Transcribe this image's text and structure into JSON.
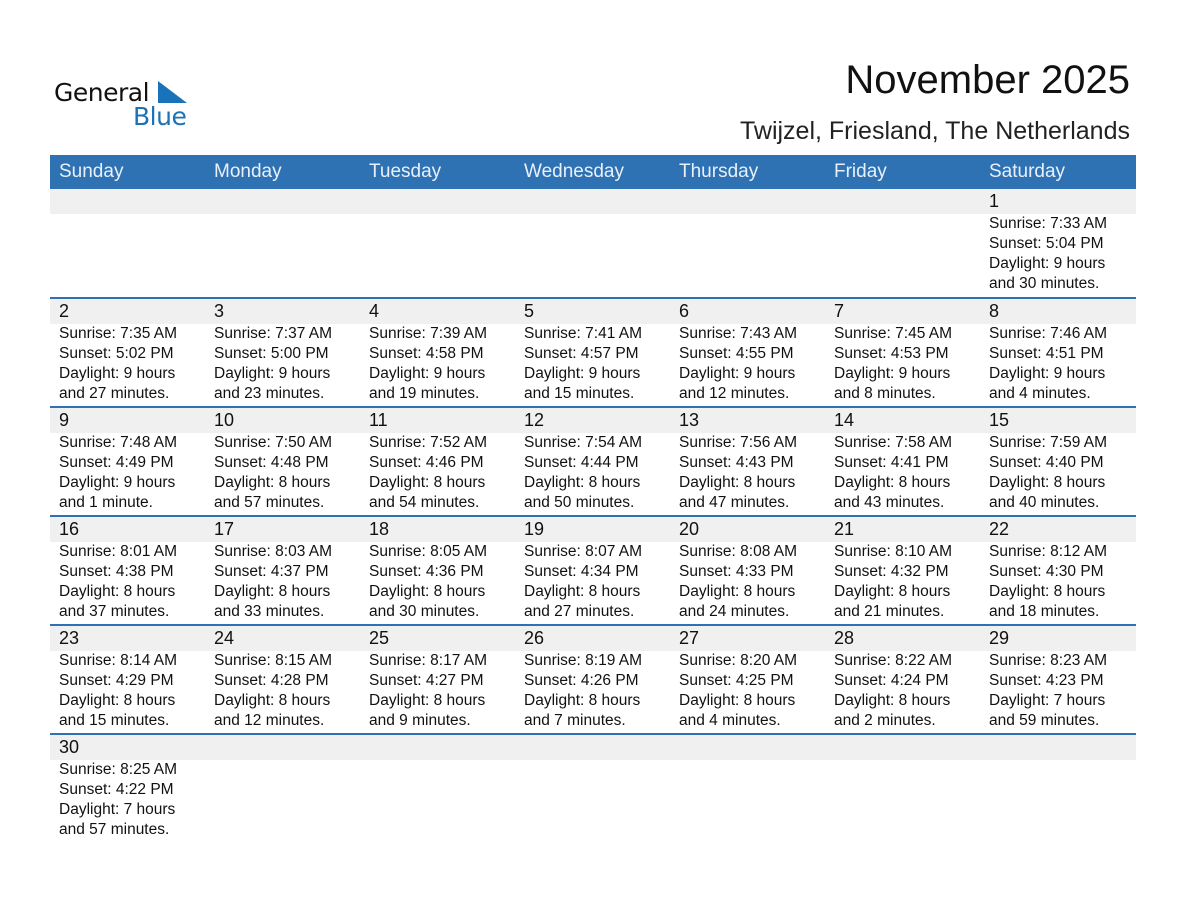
{
  "logo": {
    "word1": "General",
    "word2": "Blue",
    "accent": "#1a73b8"
  },
  "title": "November 2025",
  "location": "Twijzel, Friesland, The Netherlands",
  "colors": {
    "header": "#2e72b3",
    "band": "#f0f0f0"
  },
  "weekdays": [
    "Sunday",
    "Monday",
    "Tuesday",
    "Wednesday",
    "Thursday",
    "Friday",
    "Saturday"
  ],
  "weeks": [
    [
      null,
      null,
      null,
      null,
      null,
      null,
      {
        "day": "1",
        "sunrise": "Sunrise: 7:33 AM",
        "sunset": "Sunset: 5:04 PM",
        "daylight1": "Daylight: 9 hours",
        "daylight2": "and 30 minutes."
      }
    ],
    [
      {
        "day": "2",
        "sunrise": "Sunrise: 7:35 AM",
        "sunset": "Sunset: 5:02 PM",
        "daylight1": "Daylight: 9 hours",
        "daylight2": "and 27 minutes."
      },
      {
        "day": "3",
        "sunrise": "Sunrise: 7:37 AM",
        "sunset": "Sunset: 5:00 PM",
        "daylight1": "Daylight: 9 hours",
        "daylight2": "and 23 minutes."
      },
      {
        "day": "4",
        "sunrise": "Sunrise: 7:39 AM",
        "sunset": "Sunset: 4:58 PM",
        "daylight1": "Daylight: 9 hours",
        "daylight2": "and 19 minutes."
      },
      {
        "day": "5",
        "sunrise": "Sunrise: 7:41 AM",
        "sunset": "Sunset: 4:57 PM",
        "daylight1": "Daylight: 9 hours",
        "daylight2": "and 15 minutes."
      },
      {
        "day": "6",
        "sunrise": "Sunrise: 7:43 AM",
        "sunset": "Sunset: 4:55 PM",
        "daylight1": "Daylight: 9 hours",
        "daylight2": "and 12 minutes."
      },
      {
        "day": "7",
        "sunrise": "Sunrise: 7:45 AM",
        "sunset": "Sunset: 4:53 PM",
        "daylight1": "Daylight: 9 hours",
        "daylight2": "and 8 minutes."
      },
      {
        "day": "8",
        "sunrise": "Sunrise: 7:46 AM",
        "sunset": "Sunset: 4:51 PM",
        "daylight1": "Daylight: 9 hours",
        "daylight2": "and 4 minutes."
      }
    ],
    [
      {
        "day": "9",
        "sunrise": "Sunrise: 7:48 AM",
        "sunset": "Sunset: 4:49 PM",
        "daylight1": "Daylight: 9 hours",
        "daylight2": "and 1 minute."
      },
      {
        "day": "10",
        "sunrise": "Sunrise: 7:50 AM",
        "sunset": "Sunset: 4:48 PM",
        "daylight1": "Daylight: 8 hours",
        "daylight2": "and 57 minutes."
      },
      {
        "day": "11",
        "sunrise": "Sunrise: 7:52 AM",
        "sunset": "Sunset: 4:46 PM",
        "daylight1": "Daylight: 8 hours",
        "daylight2": "and 54 minutes."
      },
      {
        "day": "12",
        "sunrise": "Sunrise: 7:54 AM",
        "sunset": "Sunset: 4:44 PM",
        "daylight1": "Daylight: 8 hours",
        "daylight2": "and 50 minutes."
      },
      {
        "day": "13",
        "sunrise": "Sunrise: 7:56 AM",
        "sunset": "Sunset: 4:43 PM",
        "daylight1": "Daylight: 8 hours",
        "daylight2": "and 47 minutes."
      },
      {
        "day": "14",
        "sunrise": "Sunrise: 7:58 AM",
        "sunset": "Sunset: 4:41 PM",
        "daylight1": "Daylight: 8 hours",
        "daylight2": "and 43 minutes."
      },
      {
        "day": "15",
        "sunrise": "Sunrise: 7:59 AM",
        "sunset": "Sunset: 4:40 PM",
        "daylight1": "Daylight: 8 hours",
        "daylight2": "and 40 minutes."
      }
    ],
    [
      {
        "day": "16",
        "sunrise": "Sunrise: 8:01 AM",
        "sunset": "Sunset: 4:38 PM",
        "daylight1": "Daylight: 8 hours",
        "daylight2": "and 37 minutes."
      },
      {
        "day": "17",
        "sunrise": "Sunrise: 8:03 AM",
        "sunset": "Sunset: 4:37 PM",
        "daylight1": "Daylight: 8 hours",
        "daylight2": "and 33 minutes."
      },
      {
        "day": "18",
        "sunrise": "Sunrise: 8:05 AM",
        "sunset": "Sunset: 4:36 PM",
        "daylight1": "Daylight: 8 hours",
        "daylight2": "and 30 minutes."
      },
      {
        "day": "19",
        "sunrise": "Sunrise: 8:07 AM",
        "sunset": "Sunset: 4:34 PM",
        "daylight1": "Daylight: 8 hours",
        "daylight2": "and 27 minutes."
      },
      {
        "day": "20",
        "sunrise": "Sunrise: 8:08 AM",
        "sunset": "Sunset: 4:33 PM",
        "daylight1": "Daylight: 8 hours",
        "daylight2": "and 24 minutes."
      },
      {
        "day": "21",
        "sunrise": "Sunrise: 8:10 AM",
        "sunset": "Sunset: 4:32 PM",
        "daylight1": "Daylight: 8 hours",
        "daylight2": "and 21 minutes."
      },
      {
        "day": "22",
        "sunrise": "Sunrise: 8:12 AM",
        "sunset": "Sunset: 4:30 PM",
        "daylight1": "Daylight: 8 hours",
        "daylight2": "and 18 minutes."
      }
    ],
    [
      {
        "day": "23",
        "sunrise": "Sunrise: 8:14 AM",
        "sunset": "Sunset: 4:29 PM",
        "daylight1": "Daylight: 8 hours",
        "daylight2": "and 15 minutes."
      },
      {
        "day": "24",
        "sunrise": "Sunrise: 8:15 AM",
        "sunset": "Sunset: 4:28 PM",
        "daylight1": "Daylight: 8 hours",
        "daylight2": "and 12 minutes."
      },
      {
        "day": "25",
        "sunrise": "Sunrise: 8:17 AM",
        "sunset": "Sunset: 4:27 PM",
        "daylight1": "Daylight: 8 hours",
        "daylight2": "and 9 minutes."
      },
      {
        "day": "26",
        "sunrise": "Sunrise: 8:19 AM",
        "sunset": "Sunset: 4:26 PM",
        "daylight1": "Daylight: 8 hours",
        "daylight2": "and 7 minutes."
      },
      {
        "day": "27",
        "sunrise": "Sunrise: 8:20 AM",
        "sunset": "Sunset: 4:25 PM",
        "daylight1": "Daylight: 8 hours",
        "daylight2": "and 4 minutes."
      },
      {
        "day": "28",
        "sunrise": "Sunrise: 8:22 AM",
        "sunset": "Sunset: 4:24 PM",
        "daylight1": "Daylight: 8 hours",
        "daylight2": "and 2 minutes."
      },
      {
        "day": "29",
        "sunrise": "Sunrise: 8:23 AM",
        "sunset": "Sunset: 4:23 PM",
        "daylight1": "Daylight: 7 hours",
        "daylight2": "and 59 minutes."
      }
    ],
    [
      {
        "day": "30",
        "sunrise": "Sunrise: 8:25 AM",
        "sunset": "Sunset: 4:22 PM",
        "daylight1": "Daylight: 7 hours",
        "daylight2": "and 57 minutes."
      },
      null,
      null,
      null,
      null,
      null,
      null
    ]
  ]
}
